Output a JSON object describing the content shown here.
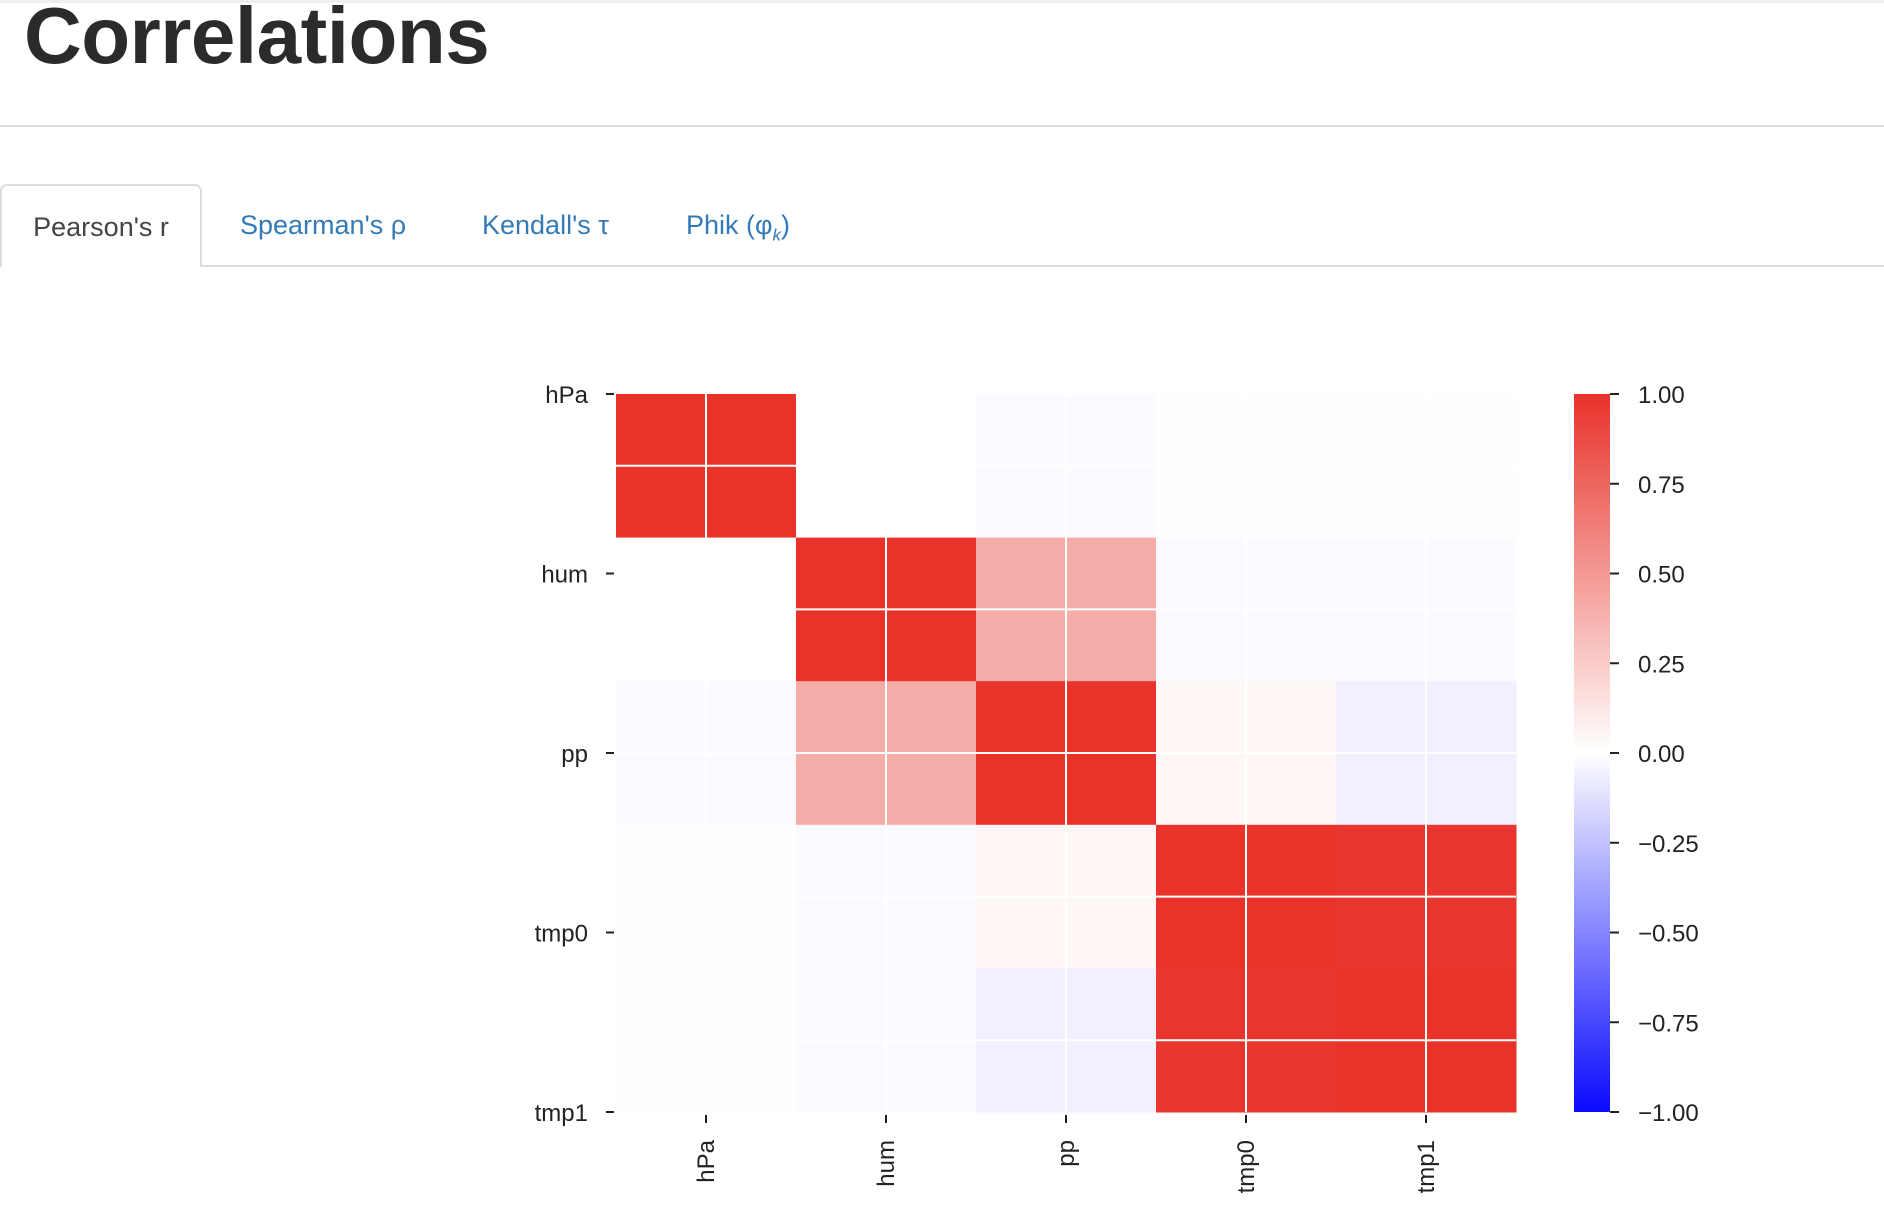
{
  "page": {
    "title": "Correlations"
  },
  "tabs": [
    {
      "label": "Pearson's r",
      "active": true
    },
    {
      "label": "Spearman's ρ",
      "active": false
    },
    {
      "label": "Kendall's τ",
      "active": false
    },
    {
      "label_main": "Phik (φ",
      "label_sub": "k",
      "label_end": ")",
      "active": false
    }
  ],
  "colors": {
    "accent": "#337ab7",
    "positive": "#e8322a",
    "neutral": "#ffffff",
    "negative": "#0a0aff"
  },
  "chart_data": {
    "type": "heatmap",
    "title": "",
    "variables": [
      "hPa",
      "hum",
      "pp",
      "tmp0",
      "tmp1"
    ],
    "matrix": [
      [
        1.0,
        0.0,
        -0.02,
        0.01,
        0.01
      ],
      [
        0.0,
        1.0,
        0.4,
        -0.02,
        -0.02
      ],
      [
        -0.02,
        0.4,
        1.0,
        0.04,
        -0.06
      ],
      [
        0.01,
        -0.02,
        0.04,
        1.0,
        0.98
      ],
      [
        0.01,
        -0.02,
        -0.06,
        0.98,
        1.0
      ]
    ],
    "colorbar": {
      "range": [
        -1.0,
        1.0
      ],
      "ticks": [
        "1.00",
        "0.75",
        "0.50",
        "0.25",
        "0.00",
        "−0.25",
        "−0.50",
        "−0.75",
        "−1.00"
      ]
    },
    "grid": true,
    "legend": "colorbar-right"
  }
}
